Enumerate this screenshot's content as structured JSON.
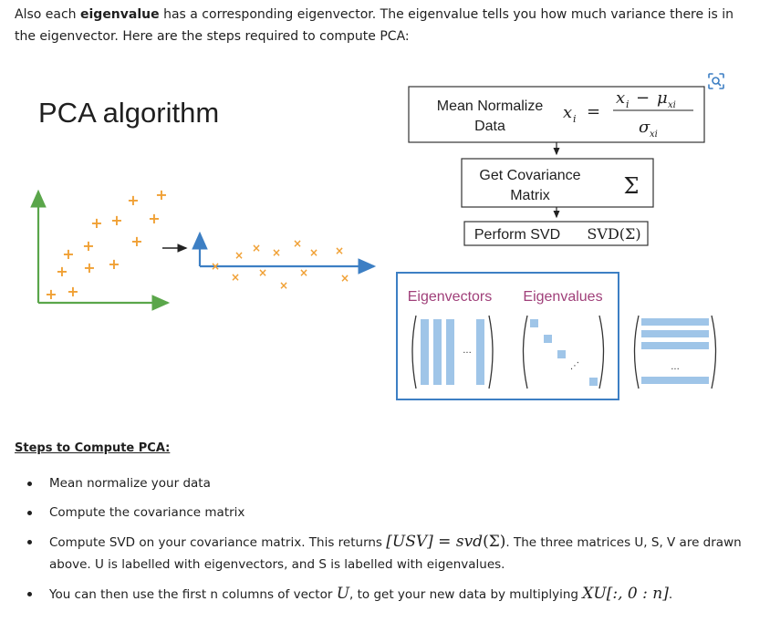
{
  "intro": {
    "before": "Also each ",
    "bold": "eigenvalue",
    "after": " has a corresponding eigenvector. The eigenvalue tells you how much variance there is in the eigenvector. Here are the steps required to compute PCA:"
  },
  "figure": {
    "title": "PCA algorithm",
    "box1_line1": "Mean Normalize",
    "box1_line2": "Data",
    "box1_lhs": "x",
    "box1_lhs_sub": "i",
    "box1_eq": "=",
    "box1_num": "x",
    "box1_num_sub": "i",
    "box1_minus": "−",
    "box1_mu": "μ",
    "box1_mu_sub": "xi",
    "box1_den": "σ",
    "box1_den_sub": "xi",
    "box2_line1": "Get Covariance",
    "box2_line2": "Matrix",
    "box2_sigma": "Σ",
    "box3_label": "Perform SVD",
    "box3_math": "SVD(Σ)",
    "eigenvectors": "Eigenvectors",
    "eigenvalues": "Eigenvalues",
    "dots": "...",
    "diag_dots": "⋰",
    "colors": {
      "green": "#5aa64a",
      "blue": "#3d7fc4",
      "orange": "#f0a034",
      "light_blue": "#9fc5e8",
      "magenta": "#a0407a"
    },
    "icons": [
      "lens-icon",
      "plus-marker",
      "cross-marker",
      "arrow-icon"
    ]
  },
  "steps_title": "Steps to Compute PCA:",
  "steps": {
    "s1": "Mean normalize your data",
    "s2": "Compute the covariance matrix",
    "s3_a": "Compute SVD on your covariance matrix. This returns ",
    "s3_math1": "[USV]",
    "s3_eq": " = ",
    "s3_math2": "svd",
    "s3_math3": "(Σ)",
    "s3_b": ". The three matrices U, S, V are drawn above. U is labelled with eigenvectors, and S is labelled with eigenvalues.",
    "s4_a": "You can then use the first n columns of vector ",
    "s4_math1": "U",
    "s4_b": ", to get your new data by multiplying ",
    "s4_math2": "XU[:, 0 : n]",
    "s4_c": "."
  }
}
